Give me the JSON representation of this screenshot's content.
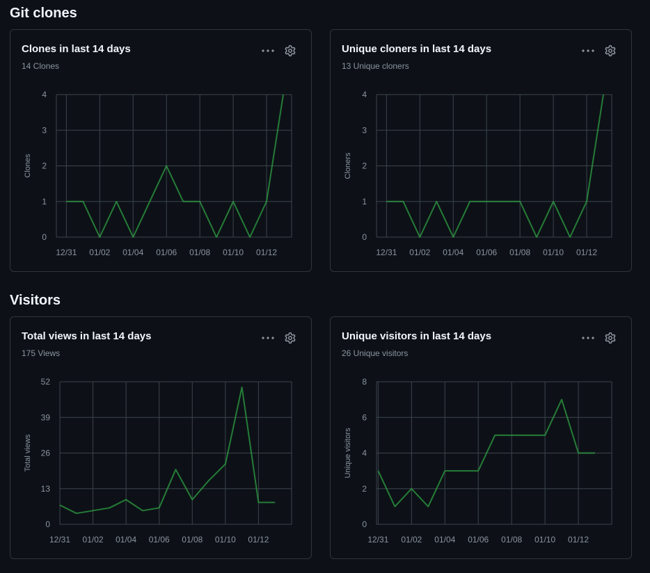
{
  "sections": {
    "clones": {
      "title": "Git clones"
    },
    "visitors": {
      "title": "Visitors"
    }
  },
  "colors": {
    "background": "#0d1117",
    "border": "#30363d",
    "grid": "#3d444d",
    "line": "#2ea043",
    "muted": "#8b949e"
  },
  "cards": [
    {
      "title": "Clones in last 14 days",
      "subtitle": "14 Clones",
      "more_icon": "kebab-horizontal-icon",
      "settings_icon": "gear-icon"
    },
    {
      "title": "Unique cloners in last 14 days",
      "subtitle": "13 Unique cloners",
      "more_icon": "kebab-horizontal-icon",
      "settings_icon": "gear-icon"
    },
    {
      "title": "Total views in last 14 days",
      "subtitle": "175 Views",
      "more_icon": "kebab-horizontal-icon",
      "settings_icon": "gear-icon"
    },
    {
      "title": "Unique visitors in last 14 days",
      "subtitle": "26 Unique visitors",
      "more_icon": "kebab-horizontal-icon",
      "settings_icon": "gear-icon"
    }
  ],
  "chart_data": [
    {
      "type": "line",
      "title": "Clones in last 14 days",
      "ylabel": "Clones",
      "xlabel": "",
      "x": [
        "12/31",
        "01/01",
        "01/02",
        "01/03",
        "01/04",
        "01/05",
        "01/06",
        "01/07",
        "01/08",
        "01/09",
        "01/10",
        "01/11",
        "01/12",
        "01/13"
      ],
      "x_tick_labels": [
        "12/31",
        "01/02",
        "01/04",
        "01/06",
        "01/08",
        "01/10",
        "01/12"
      ],
      "x_domain": [
        -0.6,
        13.5
      ],
      "y_ticks": [
        "0",
        "1",
        "2",
        "3",
        "4"
      ],
      "ylim": [
        0,
        4
      ],
      "series": [
        {
          "name": "Clones",
          "values": [
            1,
            1,
            0,
            1,
            0,
            1,
            2,
            1,
            1,
            0,
            1,
            0,
            1,
            4
          ]
        }
      ]
    },
    {
      "type": "line",
      "title": "Unique cloners in last 14 days",
      "ylabel": "Cloners",
      "xlabel": "",
      "x": [
        "12/31",
        "01/01",
        "01/02",
        "01/03",
        "01/04",
        "01/05",
        "01/06",
        "01/07",
        "01/08",
        "01/09",
        "01/10",
        "01/11",
        "01/12",
        "01/13"
      ],
      "x_tick_labels": [
        "12/31",
        "01/02",
        "01/04",
        "01/06",
        "01/08",
        "01/10",
        "01/12"
      ],
      "x_domain": [
        -0.6,
        13.5
      ],
      "y_ticks": [
        "0",
        "1",
        "2",
        "3",
        "4"
      ],
      "ylim": [
        0,
        4
      ],
      "series": [
        {
          "name": "Unique cloners",
          "values": [
            1,
            1,
            0,
            1,
            0,
            1,
            1,
            1,
            1,
            0,
            1,
            0,
            1,
            4
          ]
        }
      ]
    },
    {
      "type": "line",
      "title": "Total views in last 14 days",
      "ylabel": "Total views",
      "xlabel": "",
      "x": [
        "12/31",
        "01/01",
        "01/02",
        "01/03",
        "01/04",
        "01/05",
        "01/06",
        "01/07",
        "01/08",
        "01/09",
        "01/10",
        "01/11",
        "01/12",
        "01/13"
      ],
      "x_tick_labels": [
        "12/31",
        "01/02",
        "01/04",
        "01/06",
        "01/08",
        "01/10",
        "01/12"
      ],
      "x_domain": [
        0,
        14
      ],
      "y_ticks": [
        "0",
        "13",
        "26",
        "39",
        "52"
      ],
      "ylim": [
        0,
        52
      ],
      "series": [
        {
          "name": "Views",
          "values": [
            7,
            4,
            5,
            6,
            9,
            5,
            6,
            20,
            9,
            16,
            22,
            50,
            8,
            8
          ]
        }
      ]
    },
    {
      "type": "line",
      "title": "Unique visitors in last 14 days",
      "ylabel": "Unique visitors",
      "xlabel": "",
      "x": [
        "12/31",
        "01/01",
        "01/02",
        "01/03",
        "01/04",
        "01/05",
        "01/06",
        "01/07",
        "01/08",
        "01/09",
        "01/10",
        "01/11",
        "01/12",
        "01/13"
      ],
      "x_tick_labels": [
        "12/31",
        "01/02",
        "01/04",
        "01/06",
        "01/08",
        "01/10",
        "01/12"
      ],
      "x_domain": [
        -0.1,
        14
      ],
      "y_ticks": [
        "0",
        "2",
        "4",
        "6",
        "8"
      ],
      "ylim": [
        0,
        8
      ],
      "series": [
        {
          "name": "Unique visitors",
          "values": [
            3,
            1,
            2,
            1,
            3,
            3,
            3,
            5,
            5,
            5,
            5,
            7,
            4,
            4
          ]
        }
      ]
    }
  ]
}
